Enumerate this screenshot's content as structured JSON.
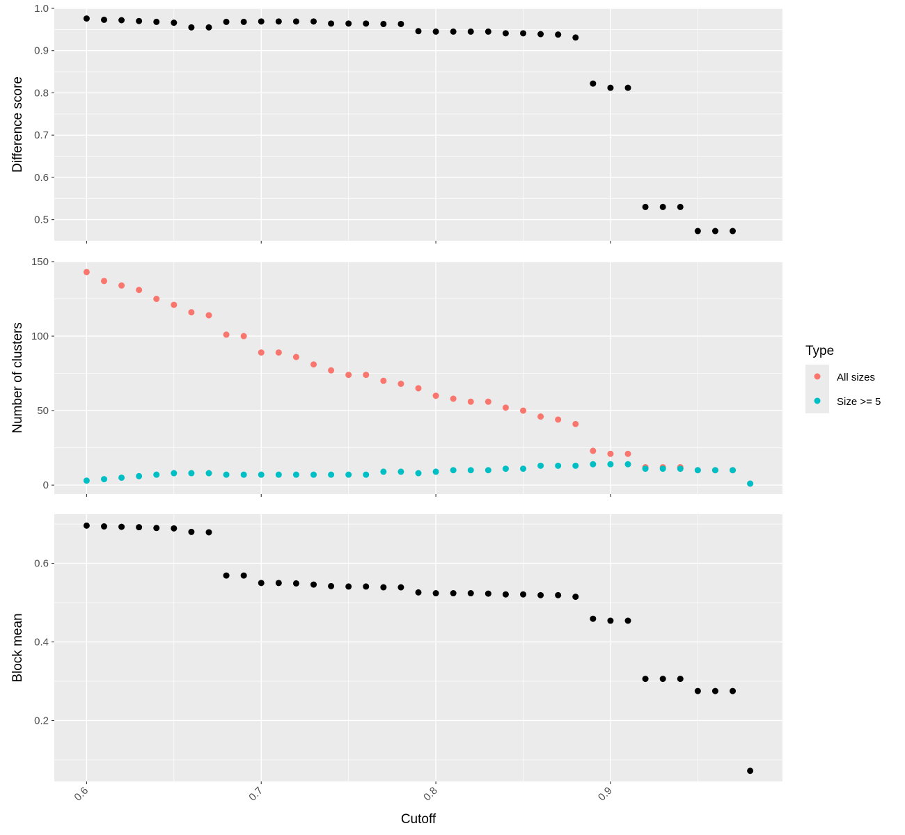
{
  "chart_data": {
    "type": "scatter",
    "xlabel": "Cutoff",
    "x_ticks": [
      "0.6",
      "0.7",
      "0.8",
      "0.9"
    ],
    "xlim": [
      0.5815,
      0.9985
    ],
    "legend": {
      "title": "Type",
      "position": "right",
      "entries": [
        {
          "label": "All sizes",
          "color": "#F8766D"
        },
        {
          "label": "Size >= 5",
          "color": "#00BFC4"
        }
      ]
    },
    "grid": true,
    "x": [
      0.6,
      0.61,
      0.62,
      0.63,
      0.64,
      0.65,
      0.66,
      0.67,
      0.68,
      0.69,
      0.7,
      0.71,
      0.72,
      0.73,
      0.74,
      0.75,
      0.76,
      0.77,
      0.78,
      0.79,
      0.8,
      0.81,
      0.82,
      0.83,
      0.84,
      0.85,
      0.86,
      0.87,
      0.88,
      0.89,
      0.9,
      0.91,
      0.92,
      0.93,
      0.94,
      0.95,
      0.96,
      0.97,
      0.98
    ],
    "panels": [
      {
        "ylabel": "Difference score",
        "ylim": [
          0.45,
          1.0
        ],
        "y_ticks": [
          "0.5",
          "0.6",
          "0.7",
          "0.8",
          "0.9",
          "1.0"
        ],
        "series": [
          {
            "color": "#000000",
            "values": [
              0.976,
              0.973,
              0.972,
              0.97,
              0.968,
              0.966,
              0.955,
              0.955,
              0.968,
              0.968,
              0.969,
              0.969,
              0.969,
              0.969,
              0.964,
              0.964,
              0.964,
              0.963,
              0.963,
              0.946,
              0.945,
              0.945,
              0.945,
              0.945,
              0.941,
              0.941,
              0.939,
              0.938,
              0.931,
              0.822,
              0.812,
              0.812,
              0.53,
              0.53,
              0.53,
              0.473,
              0.473,
              0.473,
              null
            ]
          }
        ]
      },
      {
        "ylabel": "Number of clusters",
        "ylim": [
          -6,
          150
        ],
        "y_ticks": [
          "0",
          "50",
          "100",
          "150"
        ],
        "series": [
          {
            "name": "All sizes",
            "color": "#F8766D",
            "values": [
              143,
              137,
              134,
              131,
              125,
              121,
              116,
              114,
              101,
              100,
              89,
              89,
              86,
              81,
              77,
              74,
              74,
              70,
              68,
              65,
              60,
              58,
              56,
              56,
              52,
              50,
              46,
              44,
              41,
              23,
              21,
              21,
              12,
              12,
              12,
              10,
              10,
              10,
              1
            ]
          },
          {
            "name": "Size >= 5",
            "color": "#00BFC4",
            "values": [
              3,
              4,
              5,
              6,
              7,
              8,
              8,
              8,
              7,
              7,
              7,
              7,
              7,
              7,
              7,
              7,
              7,
              9,
              9,
              8,
              9,
              10,
              10,
              10,
              11,
              11,
              13,
              13,
              13,
              14,
              14,
              14,
              11,
              11,
              11,
              10,
              10,
              10,
              1
            ]
          }
        ]
      },
      {
        "ylabel": "Block mean",
        "ylim": [
          0.045,
          0.725
        ],
        "y_ticks": [
          "0.2",
          "0.4",
          "0.6"
        ],
        "series": [
          {
            "color": "#000000",
            "values": [
              0.696,
              0.694,
              0.693,
              0.692,
              0.69,
              0.689,
              0.68,
              0.679,
              0.569,
              0.569,
              0.55,
              0.55,
              0.549,
              0.546,
              0.542,
              0.541,
              0.541,
              0.539,
              0.539,
              0.526,
              0.524,
              0.524,
              0.524,
              0.523,
              0.521,
              0.521,
              0.519,
              0.519,
              0.515,
              0.459,
              0.454,
              0.454,
              0.306,
              0.306,
              0.306,
              0.275,
              0.275,
              0.275,
              0.072
            ]
          }
        ]
      }
    ]
  }
}
